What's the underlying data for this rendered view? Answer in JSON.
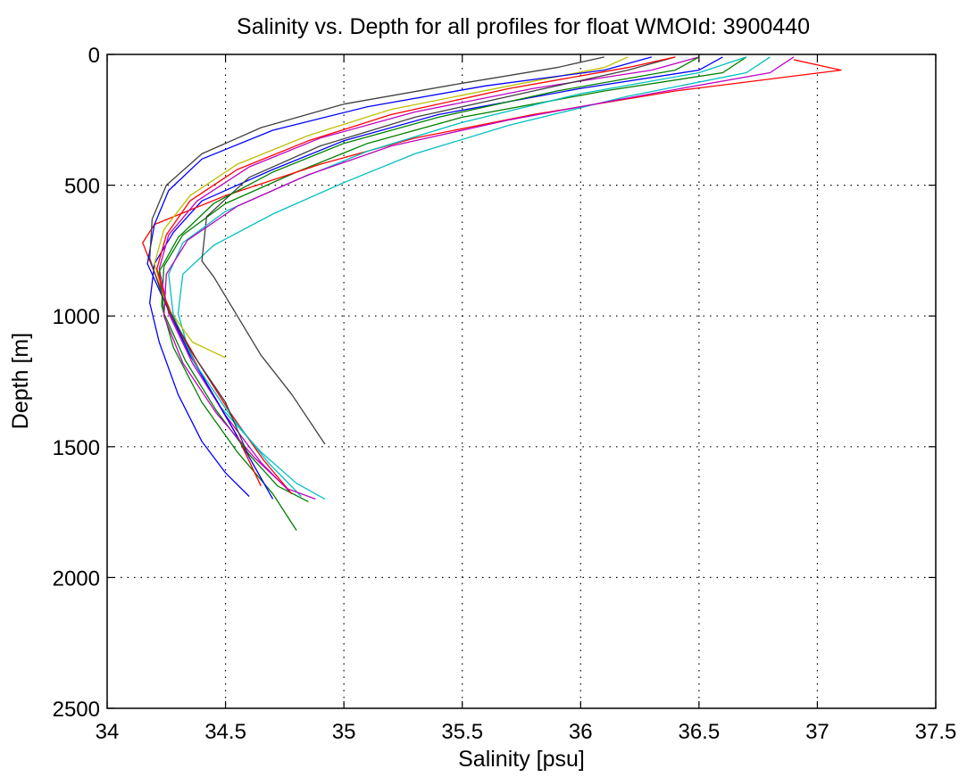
{
  "chart_data": {
    "type": "line",
    "title": "Salinity vs. Depth for all profiles for float WMOId: 3900440",
    "xlabel": "Salinity [psu]",
    "ylabel": "Depth [m]",
    "xlim": [
      34,
      37.5
    ],
    "ylim": [
      0,
      2500
    ],
    "y_reversed": true,
    "grid": true,
    "grid_style": "dotted",
    "x_ticks": [
      "34",
      "34.5",
      "35",
      "35.5",
      "36",
      "36.5",
      "37",
      "37.5"
    ],
    "y_ticks": [
      "0",
      "500",
      "1000",
      "1500",
      "2000",
      "2500"
    ],
    "profile_colors": [
      "#0000ff",
      "#008000",
      "#ff0000",
      "#00bfbf",
      "#bf00bf",
      "#bfbf00",
      "#404040"
    ],
    "profiles_note": "",
    "series": [
      {
        "color": "#0000ff",
        "x": [
          36.6,
          36.5,
          36.0,
          35.4,
          35.0,
          34.7,
          34.4,
          34.28,
          34.2,
          34.18,
          34.22,
          34.3,
          34.4,
          34.5,
          34.6
        ],
        "y": [
          10,
          60,
          130,
          230,
          330,
          440,
          560,
          680,
          800,
          950,
          1100,
          1300,
          1480,
          1600,
          1690
        ]
      },
      {
        "color": "#008000",
        "x": [
          36.7,
          36.6,
          36.1,
          35.5,
          35.1,
          34.8,
          34.5,
          34.32,
          34.24,
          34.23,
          34.28,
          34.4,
          34.55,
          34.7,
          34.8
        ],
        "y": [
          10,
          70,
          140,
          240,
          340,
          450,
          570,
          690,
          810,
          960,
          1120,
          1330,
          1520,
          1680,
          1820
        ]
      },
      {
        "color": "#ff0000",
        "x": [
          36.9,
          37.1,
          36.4,
          35.8,
          35.3,
          34.9,
          34.5,
          34.2,
          34.15,
          34.22,
          34.3,
          34.42,
          34.55,
          34.65
        ],
        "y": [
          20,
          60,
          140,
          230,
          320,
          420,
          540,
          650,
          720,
          880,
          1050,
          1260,
          1460,
          1650
        ]
      },
      {
        "color": "#00bfbf",
        "x": [
          36.8,
          36.7,
          36.2,
          35.7,
          35.3,
          35.0,
          34.7,
          34.45,
          34.32,
          34.3,
          34.35,
          34.48,
          34.65,
          34.8,
          34.92
        ],
        "y": [
          10,
          70,
          160,
          270,
          380,
          490,
          610,
          730,
          840,
          990,
          1150,
          1350,
          1520,
          1640,
          1700
        ]
      },
      {
        "color": "#bf00bf",
        "x": [
          36.5,
          36.3,
          35.8,
          35.3,
          34.9,
          34.6,
          34.38,
          34.26,
          34.22,
          34.26,
          34.36,
          34.5,
          34.65,
          34.78
        ],
        "y": [
          10,
          60,
          130,
          220,
          320,
          430,
          560,
          690,
          820,
          990,
          1180,
          1380,
          1560,
          1680
        ]
      },
      {
        "color": "#bfbf00",
        "x": [
          36.2,
          36.1,
          35.7,
          35.2,
          34.85,
          34.55,
          34.35,
          34.24,
          34.2,
          34.25,
          34.36,
          34.5
        ],
        "y": [
          10,
          50,
          120,
          210,
          310,
          420,
          540,
          670,
          800,
          960,
          1100,
          1160
        ]
      },
      {
        "color": "#404040",
        "x": [
          36.4,
          36.2,
          35.8,
          35.3,
          34.9,
          34.6,
          34.42,
          34.4,
          34.45,
          34.55,
          34.65,
          34.78,
          34.92
        ],
        "y": [
          10,
          60,
          140,
          240,
          350,
          470,
          620,
          790,
          850,
          1000,
          1150,
          1300,
          1490
        ]
      },
      {
        "color": "#0000ff",
        "x": [
          36.3,
          36.1,
          35.6,
          35.1,
          34.7,
          34.4,
          34.26,
          34.2,
          34.17,
          34.25,
          34.35,
          34.48,
          34.6,
          34.7
        ],
        "y": [
          10,
          60,
          120,
          200,
          290,
          400,
          520,
          650,
          800,
          960,
          1150,
          1350,
          1540,
          1700
        ]
      },
      {
        "color": "#008000",
        "x": [
          36.5,
          36.4,
          35.9,
          35.4,
          35.0,
          34.7,
          34.45,
          34.3,
          34.22,
          34.24,
          34.33,
          34.46,
          34.6,
          34.72,
          34.85
        ],
        "y": [
          10,
          60,
          140,
          240,
          340,
          450,
          570,
          700,
          830,
          990,
          1170,
          1360,
          1530,
          1650,
          1710
        ]
      },
      {
        "color": "#ff0000",
        "x": [
          36.4,
          36.2,
          35.7,
          35.2,
          34.85,
          34.55,
          34.35,
          34.25,
          34.21,
          34.26,
          34.38,
          34.52,
          34.66,
          34.78
        ],
        "y": [
          10,
          50,
          130,
          230,
          330,
          440,
          560,
          690,
          820,
          980,
          1170,
          1370,
          1550,
          1680
        ]
      },
      {
        "color": "#00bfbf",
        "x": [
          36.7,
          36.5,
          36.0,
          35.5,
          35.1,
          34.8,
          34.5,
          34.32,
          34.26,
          34.28,
          34.37,
          34.52,
          34.68,
          34.82
        ],
        "y": [
          10,
          70,
          150,
          260,
          370,
          480,
          600,
          720,
          840,
          1000,
          1180,
          1380,
          1560,
          1690
        ]
      },
      {
        "color": "#bf00bf",
        "x": [
          36.9,
          36.8,
          36.3,
          35.7,
          35.2,
          34.85,
          34.55,
          34.34,
          34.25,
          34.24,
          34.32,
          34.46,
          34.62,
          34.76,
          34.88
        ],
        "y": [
          10,
          70,
          150,
          250,
          350,
          460,
          580,
          710,
          840,
          1000,
          1180,
          1370,
          1540,
          1660,
          1700
        ]
      },
      {
        "color": "#404040",
        "x": [
          36.1,
          35.9,
          35.5,
          35.0,
          34.65,
          34.4,
          34.25,
          34.19,
          34.18,
          34.24,
          34.35,
          34.5,
          34.6
        ],
        "y": [
          10,
          50,
          110,
          190,
          280,
          380,
          500,
          630,
          780,
          940,
          1130,
          1330,
          1540
        ]
      }
    ]
  }
}
